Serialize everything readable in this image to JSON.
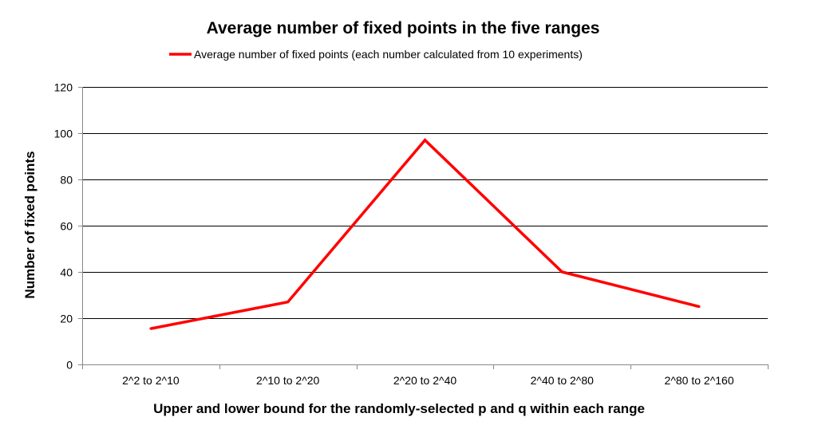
{
  "chart_data": {
    "type": "line",
    "title": "Average number of fixed points in the five ranges",
    "xlabel": "Upper and lower bound for the randomly-selected p and q within each range",
    "ylabel": "Number of fixed points",
    "categories": [
      "2^2 to 2^10",
      "2^10 to 2^20",
      "2^20 to 2^40",
      "2^40 to 2^80",
      "2^80 to 2^160"
    ],
    "series": [
      {
        "name": "Average number of fixed points (each number calculated from 10 experiments)",
        "values": [
          15.5,
          27,
          97,
          40,
          25
        ]
      }
    ],
    "ylim": [
      0,
      120
    ],
    "yticks": [
      "0",
      "20",
      "40",
      "60",
      "80",
      "100",
      "120"
    ],
    "grid": true,
    "legend": "top-center",
    "colors": {
      "series": "#ff0000",
      "grid": "#000000"
    }
  }
}
